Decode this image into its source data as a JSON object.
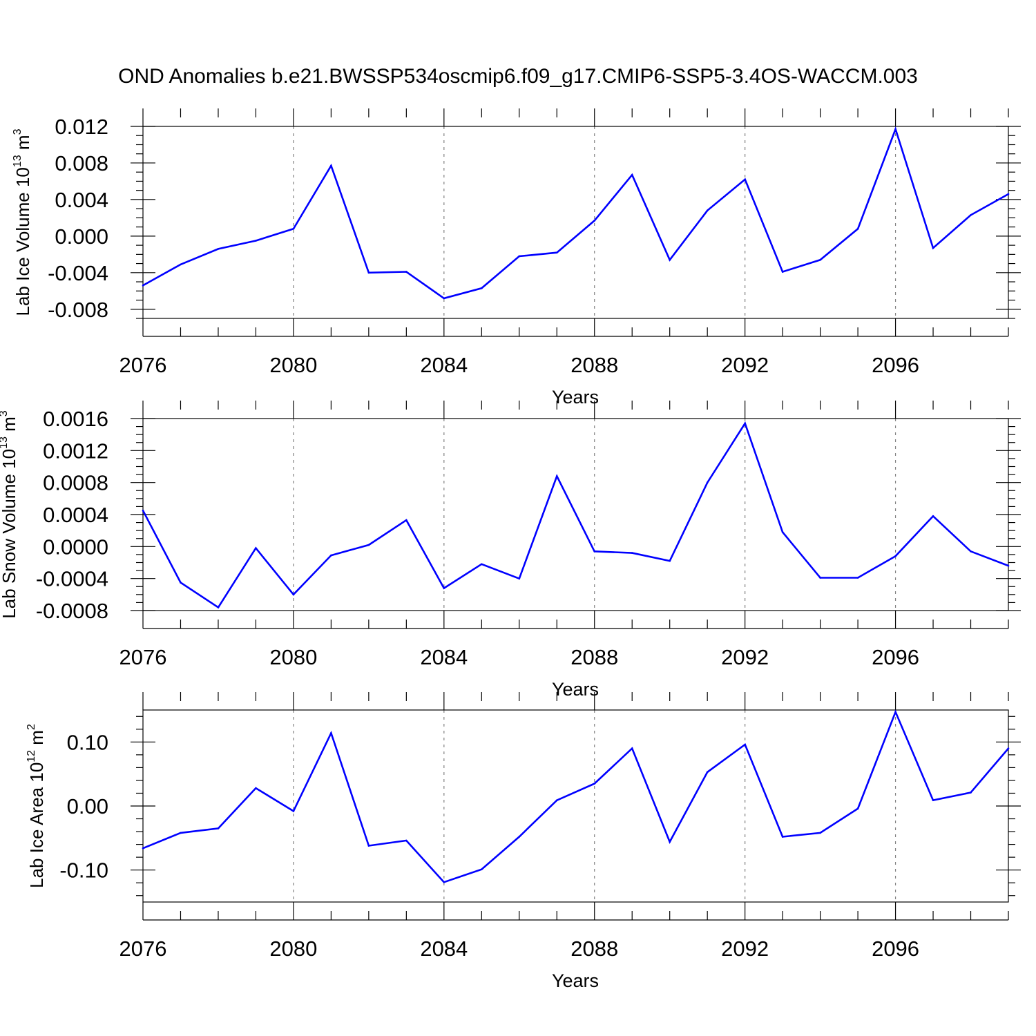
{
  "title": "OND Anomalies b.e21.BWSSP534oscmip6.f09_g17.CMIP6-SSP5-3.4OS-WACCM.003",
  "colors": {
    "line": "#0000ff",
    "axis": "#000000",
    "grid": "#808080"
  },
  "chart_data": [
    {
      "type": "line",
      "title": "",
      "xlabel": "Years",
      "ylabel": "Lab Ice Volume 10",
      "ylabel_exp": "13",
      "ylabel_unit": " m",
      "ylabel_unit_exp": "3",
      "xlim": [
        2076,
        2099
      ],
      "ylim": [
        -0.009,
        0.012
      ],
      "xticks": [
        2076,
        2080,
        2084,
        2088,
        2092,
        2096
      ],
      "yticks": [
        -0.008,
        -0.004,
        0.0,
        0.004,
        0.008,
        0.012
      ],
      "ytick_labels": [
        "-0.008",
        "-0.004",
        "0.000",
        "0.004",
        "0.008",
        "0.012"
      ],
      "yminor_step": 0.001,
      "grid": "dashed vertical at major x ticks",
      "x": [
        2076,
        2077,
        2078,
        2079,
        2080,
        2081,
        2082,
        2083,
        2084,
        2085,
        2086,
        2087,
        2088,
        2089,
        2090,
        2091,
        2092,
        2093,
        2094,
        2095,
        2096,
        2097,
        2098,
        2099
      ],
      "series": [
        {
          "name": "Lab Ice Volume",
          "values": [
            -0.0054,
            -0.0031,
            -0.0014,
            -0.0005,
            0.0008,
            0.0077,
            -0.004,
            -0.0039,
            -0.0068,
            -0.0057,
            -0.0022,
            -0.0018,
            0.0017,
            0.0067,
            -0.0026,
            0.0028,
            0.0062,
            -0.0039,
            -0.0026,
            0.0008,
            0.0117,
            -0.0013,
            0.0023,
            0.0046
          ]
        }
      ]
    },
    {
      "type": "line",
      "title": "",
      "xlabel": "Years",
      "ylabel": "Lab Snow Volume 10",
      "ylabel_exp": "13",
      "ylabel_unit": " m",
      "ylabel_unit_exp": "3",
      "xlim": [
        2076,
        2099
      ],
      "ylim": [
        -0.0008,
        0.0016
      ],
      "xticks": [
        2076,
        2080,
        2084,
        2088,
        2092,
        2096
      ],
      "yticks": [
        -0.0008,
        -0.0004,
        0.0,
        0.0004,
        0.0008,
        0.0012,
        0.0016
      ],
      "ytick_labels": [
        "-0.0008",
        "-0.0004",
        "0.0000",
        "0.0004",
        "0.0008",
        "0.0012",
        "0.0016"
      ],
      "yminor_step": 0.0001,
      "grid": "dashed vertical at major x ticks",
      "x": [
        2076,
        2077,
        2078,
        2079,
        2080,
        2081,
        2082,
        2083,
        2084,
        2085,
        2086,
        2087,
        2088,
        2089,
        2090,
        2091,
        2092,
        2093,
        2094,
        2095,
        2096,
        2097,
        2098,
        2099
      ],
      "series": [
        {
          "name": "Lab Snow Volume",
          "values": [
            0.00045,
            -0.00045,
            -0.00076,
            -2e-05,
            -0.0006,
            -0.00011,
            2e-05,
            0.00033,
            -0.00052,
            -0.00022,
            -0.0004,
            0.00088,
            -6e-05,
            -8e-05,
            -0.00018,
            0.0008,
            0.00154,
            0.00018,
            -0.00039,
            -0.00039,
            -0.00012,
            0.00038,
            -6e-05,
            -0.00024
          ]
        }
      ]
    },
    {
      "type": "line",
      "title": "",
      "xlabel": "Years",
      "ylabel": "Lab Ice Area 10",
      "ylabel_exp": "12",
      "ylabel_unit": " m",
      "ylabel_unit_exp": "2",
      "xlim": [
        2076,
        2099
      ],
      "ylim": [
        -0.15,
        0.15
      ],
      "xticks": [
        2076,
        2080,
        2084,
        2088,
        2092,
        2096
      ],
      "yticks": [
        -0.1,
        0.0,
        0.1
      ],
      "ytick_labels": [
        "-0.10",
        "0.00",
        "0.10"
      ],
      "yminor_step": 0.02,
      "grid": "dashed vertical at major x ticks",
      "x": [
        2076,
        2077,
        2078,
        2079,
        2080,
        2081,
        2082,
        2083,
        2084,
        2085,
        2086,
        2087,
        2088,
        2089,
        2090,
        2091,
        2092,
        2093,
        2094,
        2095,
        2096,
        2097,
        2098,
        2099
      ],
      "series": [
        {
          "name": "Lab Ice Area",
          "values": [
            -0.066,
            -0.042,
            -0.035,
            0.028,
            -0.008,
            0.114,
            -0.062,
            -0.054,
            -0.119,
            -0.099,
            -0.048,
            0.009,
            0.035,
            0.09,
            -0.056,
            0.053,
            0.096,
            -0.048,
            -0.042,
            -0.004,
            0.147,
            0.009,
            0.021,
            0.09
          ]
        }
      ]
    }
  ]
}
